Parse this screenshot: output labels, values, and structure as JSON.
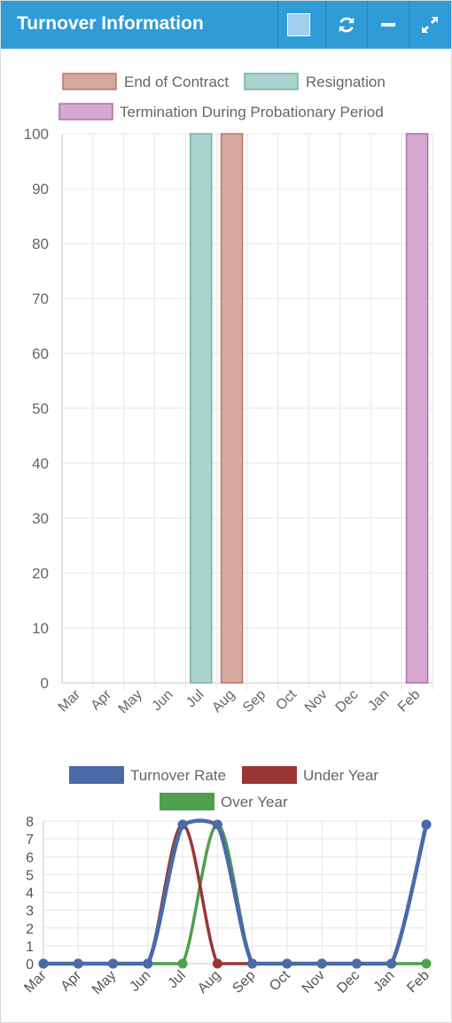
{
  "panel": {
    "title": "Turnover Information",
    "buttons": [
      {
        "name": "color-swatch",
        "icon": "square-swatch-icon",
        "color": "#9fd0ee"
      },
      {
        "name": "refresh",
        "icon": "refresh-icon"
      },
      {
        "name": "minimize",
        "icon": "minus-icon"
      },
      {
        "name": "expand",
        "icon": "expand-icon"
      }
    ],
    "header_color": "#2f9bd7"
  },
  "chart_data": [
    {
      "type": "bar",
      "title": "",
      "xlabel": "",
      "ylabel": "",
      "categories": [
        "Mar",
        "Apr",
        "May",
        "Jun",
        "Jul",
        "Aug",
        "Sep",
        "Oct",
        "Nov",
        "Dec",
        "Jan",
        "Feb"
      ],
      "ylim": [
        0,
        100
      ],
      "yticks": [
        0,
        10,
        20,
        30,
        40,
        50,
        60,
        70,
        80,
        90,
        100
      ],
      "grid": true,
      "legend_position": "top",
      "series": [
        {
          "name": "End of Contract",
          "color": "#d5a8a0",
          "border": "#c0766b",
          "values": [
            0,
            0,
            0,
            0,
            0,
            100,
            0,
            0,
            0,
            0,
            0,
            0
          ]
        },
        {
          "name": "Resignation",
          "color": "#a9d3cc",
          "border": "#6fb3a8",
          "values": [
            0,
            0,
            0,
            0,
            100,
            0,
            0,
            0,
            0,
            0,
            0,
            0
          ]
        },
        {
          "name": "Termination During Probationary Period",
          "color": "#d4a8d0",
          "border": "#b26cae",
          "values": [
            0,
            0,
            0,
            0,
            0,
            0,
            0,
            0,
            0,
            0,
            0,
            100
          ]
        }
      ]
    },
    {
      "type": "line",
      "title": "",
      "xlabel": "",
      "ylabel": "",
      "categories": [
        "Mar",
        "Apr",
        "May",
        "Jun",
        "Jul",
        "Aug",
        "Sep",
        "Oct",
        "Nov",
        "Dec",
        "Jan",
        "Feb"
      ],
      "ylim": [
        0,
        8
      ],
      "yticks": [
        0,
        1,
        2,
        3,
        4,
        5,
        6,
        7,
        8
      ],
      "grid": true,
      "legend_position": "top",
      "series": [
        {
          "name": "Over Year",
          "color": "#4ea04e",
          "values": [
            0,
            0,
            0,
            0,
            0,
            7.8,
            0,
            0,
            0,
            0,
            0,
            0
          ]
        },
        {
          "name": "Under Year",
          "color": "#9b3535",
          "values": [
            0,
            0,
            0,
            0,
            7.8,
            0,
            0,
            0,
            0,
            0,
            0,
            7.8
          ]
        },
        {
          "name": "Turnover Rate",
          "color": "#4a6aa8",
          "values": [
            0,
            0,
            0,
            0,
            7.8,
            7.8,
            0,
            0,
            0,
            0,
            0,
            7.8
          ]
        }
      ]
    }
  ]
}
